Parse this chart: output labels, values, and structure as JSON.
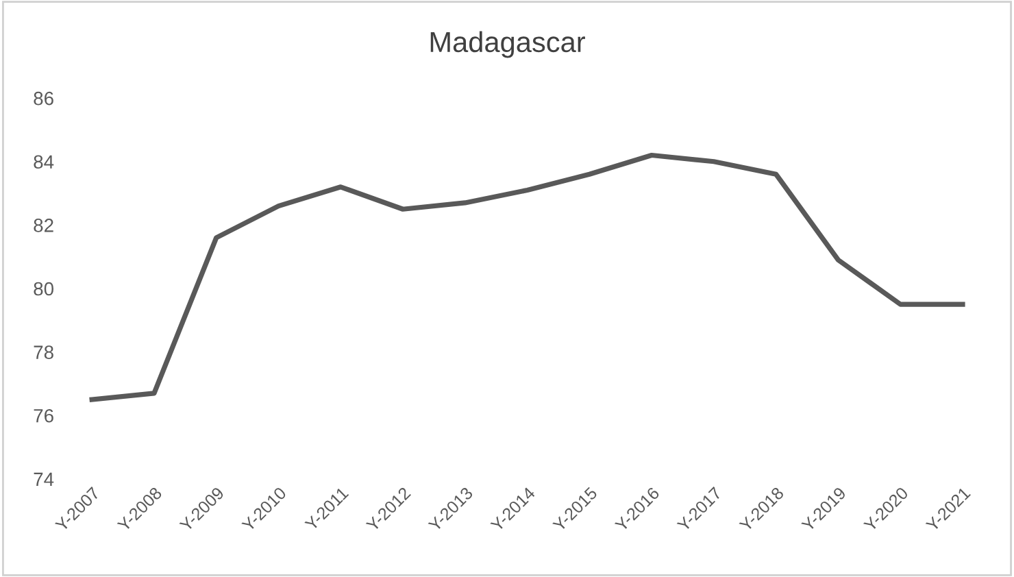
{
  "chart_data": {
    "type": "line",
    "title": "Madagascar",
    "categories": [
      "Y-2007",
      "Y-2008",
      "Y-2009",
      "Y-2010",
      "Y-2011",
      "Y-2012",
      "Y-2013",
      "Y-2014",
      "Y-2015",
      "Y-2016",
      "Y-2017",
      "Y-2018",
      "Y-2019",
      "Y-2020",
      "Y-2021"
    ],
    "series": [
      {
        "color": "#595959",
        "values": [
          76.5,
          76.7,
          81.6,
          82.6,
          83.2,
          82.5,
          82.7,
          83.1,
          83.6,
          84.2,
          84.0,
          83.6,
          80.9,
          79.5,
          79.5
        ]
      }
    ],
    "ylim": [
      74,
      86
    ],
    "yticks": [
      74,
      76,
      78,
      80,
      82,
      84,
      86
    ],
    "grid": false,
    "legend": false,
    "marker": "none",
    "line_style": "solid"
  }
}
